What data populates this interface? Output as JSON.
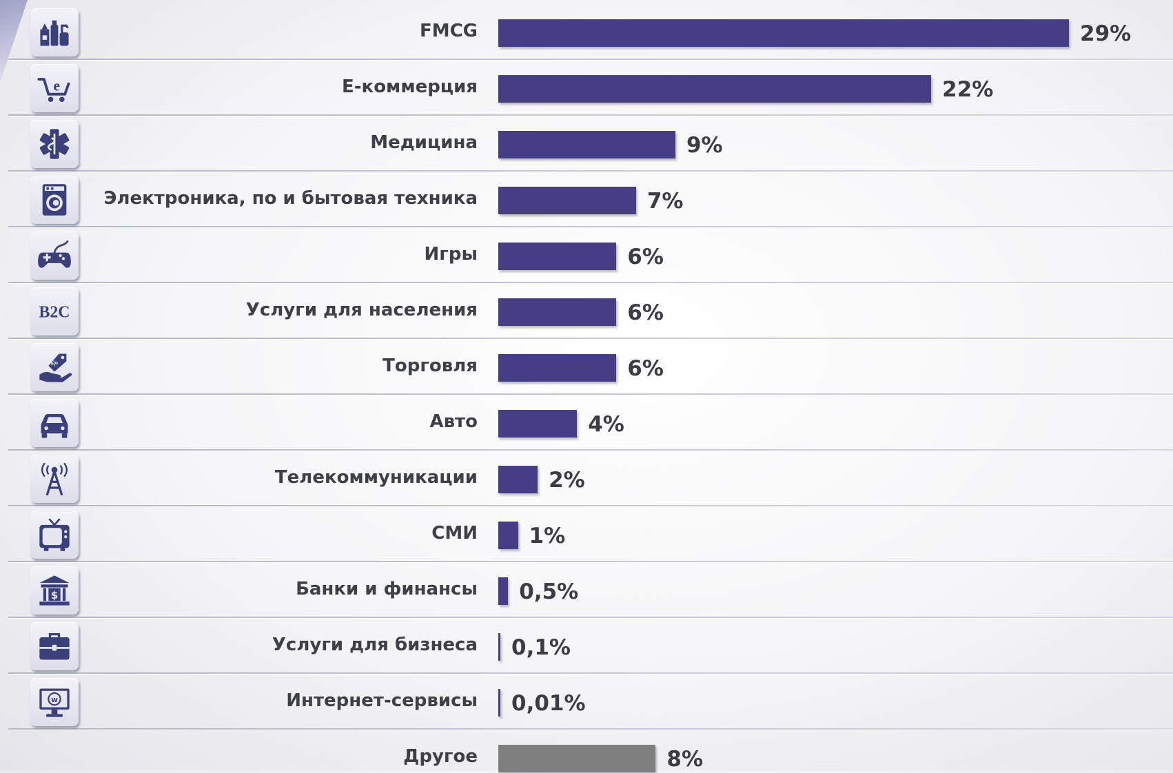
{
  "chart_data": {
    "type": "bar",
    "orientation": "horizontal",
    "unit": "%",
    "xlim": [
      0,
      29
    ],
    "grid": false,
    "legend": "none",
    "categories": [
      "FMCG",
      "Е-коммерция",
      "Медицина",
      "Электроника, по и бытовая техника",
      "Игры",
      "Услуги для населения",
      "Торговля",
      "Авто",
      "Телекоммуникации",
      "СМИ",
      "Банки и финансы",
      "Услуги для бизнеса",
      "Интернет-сервисы",
      "Другое"
    ],
    "values": [
      29,
      22,
      9,
      7,
      6,
      6,
      6,
      4,
      2,
      1,
      0.5,
      0.1,
      0.01,
      8
    ],
    "value_labels": [
      "29%",
      "22%",
      "9%",
      "7%",
      "6%",
      "6%",
      "6%",
      "4%",
      "2%",
      "1%",
      "0,5%",
      "0,1%",
      "0,01%",
      "8%"
    ],
    "icons": [
      "consumer-goods-icon",
      "ecommerce-cart-icon",
      "medical-star-icon",
      "washing-machine-icon",
      "gamepad-icon",
      "b2c-icon",
      "hand-tag-icon",
      "car-icon",
      "antenna-icon",
      "tv-icon",
      "bank-icon",
      "briefcase-icon",
      "internet-monitor-icon",
      ""
    ],
    "colors": {
      "main": "#463e84",
      "other": "#7f7f7f"
    },
    "icon_tile_text": {
      "b2c": "B2C"
    }
  }
}
